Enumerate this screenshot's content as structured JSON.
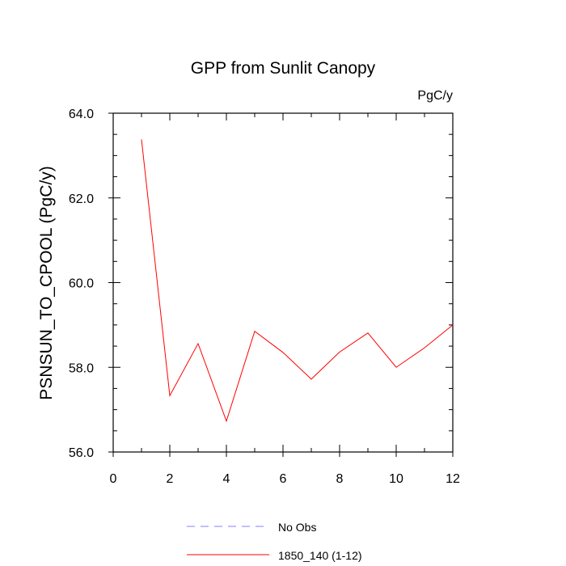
{
  "chart_data": {
    "type": "line",
    "title": "GPP from Sunlit Canopy",
    "units_label": "PgC/y",
    "ylabel": "PSNSUN_TO_CPOOL  (PgC/y)",
    "xlabel": "",
    "xlim": [
      0,
      12
    ],
    "ylim": [
      56.0,
      64.0
    ],
    "x_ticks": [
      0,
      2,
      4,
      6,
      8,
      10,
      12
    ],
    "x_tick_labels": [
      "0",
      "2",
      "4",
      "6",
      "8",
      "10",
      "12"
    ],
    "y_ticks": [
      56.0,
      58.0,
      60.0,
      62.0,
      64.0
    ],
    "y_tick_labels": [
      "56.0",
      "58.0",
      "60.0",
      "62.0",
      "64.0"
    ],
    "grid": false,
    "legend_position": "bottom",
    "series": [
      {
        "name": "No Obs",
        "color": "#8080ff",
        "style": "dashed",
        "x": [],
        "y": []
      },
      {
        "name": "1850_140 (1-12)",
        "color": "#ff0000",
        "style": "solid",
        "x": [
          1,
          2,
          3,
          4,
          5,
          6,
          7,
          8,
          9,
          10,
          11,
          12
        ],
        "y": [
          63.38,
          57.33,
          58.56,
          56.73,
          58.85,
          58.35,
          57.72,
          58.36,
          58.81,
          58.0,
          58.46,
          59.0
        ]
      }
    ]
  }
}
